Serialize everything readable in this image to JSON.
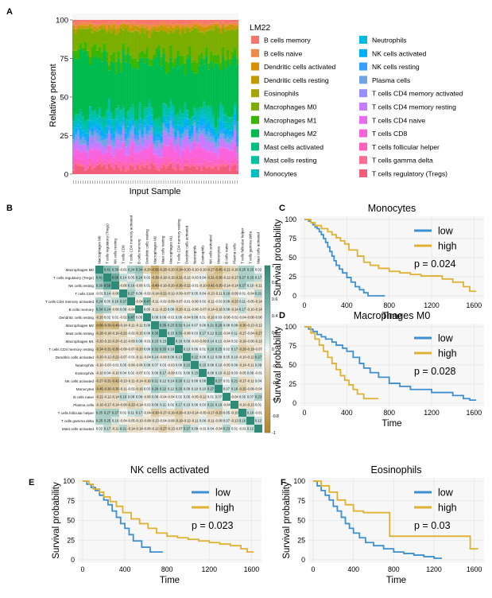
{
  "colors": {
    "green": "#2e8b78",
    "gold": "#b5892a",
    "km_low": "#3d8fd2",
    "km_high": "#e0b030",
    "grid": "#e6e6e6",
    "panel_bg": "#f7f7f7"
  },
  "panels": {
    "a": {
      "label": "A"
    },
    "b": {
      "label": "B"
    },
    "c": {
      "label": "C"
    },
    "d": {
      "label": "D"
    },
    "e": {
      "label": "E"
    },
    "f": {
      "label": "F"
    }
  },
  "chart_data": [
    {
      "id": "A",
      "type": "bar",
      "stacked": true,
      "xlabel": "Input Sample",
      "ylabel": "Relative percent",
      "ylim": [
        0,
        100
      ],
      "yticks": [
        0,
        25,
        50,
        75,
        100
      ],
      "legend": {
        "title": "LM22",
        "placement": "right",
        "entries": [
          {
            "name": "B cells memory",
            "color": "#f7766d"
          },
          {
            "name": "B cells naive",
            "color": "#f08a4b"
          },
          {
            "name": "Dendritic cells activated",
            "color": "#d89000"
          },
          {
            "name": "Dendritic cells resting",
            "color": "#c49a00"
          },
          {
            "name": "Eosinophils",
            "color": "#a3a500"
          },
          {
            "name": "Macrophages M0",
            "color": "#7cae00"
          },
          {
            "name": "Macrophages M1",
            "color": "#39b600"
          },
          {
            "name": "Macrophages M2",
            "color": "#00bb4e"
          },
          {
            "name": "Mast cells activated",
            "color": "#00bf7d"
          },
          {
            "name": "Mast cells resting",
            "color": "#00c1a3"
          },
          {
            "name": "Monocytes",
            "color": "#00bfc4"
          },
          {
            "name": "Neutrophils",
            "color": "#00bae0"
          },
          {
            "name": "NK cells activated",
            "color": "#00b0f6"
          },
          {
            "name": "NK cells resting",
            "color": "#35a2ff"
          },
          {
            "name": "Plasma cells",
            "color": "#6ea6e4"
          },
          {
            "name": "T cells CD4 memory activated",
            "color": "#9590ff"
          },
          {
            "name": "T cells CD4 memory resting",
            "color": "#c77cff"
          },
          {
            "name": "T cells CD4 naive",
            "color": "#e76bf3"
          },
          {
            "name": "T cells CD8",
            "color": "#fa62db"
          },
          {
            "name": "T cells follicular helper",
            "color": "#ff62bc"
          },
          {
            "name": "T cells gamma delta",
            "color": "#ff6c91"
          },
          {
            "name": "T cells regulatory (Tregs)",
            "color": "#f25d7b"
          }
        ]
      },
      "n_samples": 70
    },
    {
      "id": "B",
      "type": "heatmap",
      "color_scale": {
        "min": -1,
        "max": 1,
        "ticks": [
          1,
          0.8,
          0.6,
          0.4,
          0.2,
          0,
          -0.2,
          -0.4,
          -0.6,
          -0.8,
          -1
        ]
      },
      "labels": [
        "Macrophages M0",
        "T cells regulatory (Tregs)",
        "NK cells resting",
        "T cells CD8",
        "T cells CD4 memory activated",
        "B cells memory",
        "Dendritic cells resting",
        "Macrophages M2",
        "Mast cells resting",
        "Macrophages M1",
        "T cells CD4 memory resting",
        "Dendritic cells activated",
        "Neutrophils",
        "Eosinophils",
        "NK cells activated",
        "Monocytes",
        "B cells naive",
        "Plasma cells",
        "T cells follicular helper",
        "T cells gamma delta",
        "Mast cells activated"
      ],
      "matrix": [
        [
          1,
          0.41,
          0.3,
          -0.01,
          0.24,
          0.34,
          -0.2,
          -0.56,
          -0.28,
          -0.2,
          -0.34,
          -0.2,
          -0.1,
          -0.1,
          -0.27,
          -0.45,
          -0.21,
          -0.16,
          0.25,
          0.25,
          0.02
        ],
        [
          0.41,
          1,
          0.59,
          0.14,
          0.05,
          0.24,
          0.02,
          -0.39,
          -0.18,
          -0.15,
          -0.31,
          -0.12,
          -0.03,
          0.04,
          -0.31,
          -0.36,
          -0.12,
          -0.17,
          0.27,
          0.25,
          0.17
        ],
        [
          0.3,
          0.59,
          1,
          -0.06,
          0.16,
          -0.06,
          0.01,
          -0.49,
          -0.16,
          -0.2,
          -0.36,
          -0.22,
          -0.01,
          -0.1,
          -0.42,
          -0.35,
          -0.14,
          -0.14,
          0.27,
          0.1,
          -0.11
        ],
        [
          -0.01,
          0.14,
          -0.06,
          1,
          0.27,
          0.08,
          -0.02,
          -0.14,
          -0.22,
          -0.12,
          -0.09,
          -0.07,
          0.05,
          0.04,
          -0.13,
          -0.11,
          0.18,
          -0.09,
          0.01,
          -0.04,
          0.21
        ],
        [
          0.24,
          0.05,
          0.16,
          0.27,
          1,
          -0.04,
          0.47,
          -0.11,
          -0.02,
          -0.09,
          -0.07,
          -0.01,
          -0.06,
          0.02,
          -0.11,
          -0.02,
          0.08,
          -0.23,
          0.11,
          -0.05,
          -0.14
        ],
        [
          0.34,
          0.24,
          -0.06,
          0.08,
          -0.04,
          1,
          0.05,
          -0.11,
          -0.15,
          0.08,
          -0.2,
          -0.11,
          -0.06,
          -0.07,
          -0.14,
          -0.16,
          0.08,
          -0.14,
          0.17,
          -0.1,
          -0.14
        ],
        [
          -0.2,
          0.02,
          0.01,
          -0.02,
          0.47,
          0.05,
          1,
          0.08,
          0.06,
          -0.01,
          0.06,
          -0.04,
          0.08,
          0.01,
          -0.16,
          0.03,
          -0.06,
          -0.02,
          -0.04,
          -0.08,
          -0.06
        ],
        [
          -0.56,
          -0.39,
          -0.49,
          -0.14,
          -0.11,
          -0.11,
          0.08,
          1,
          0.35,
          0.23,
          0.32,
          0.14,
          0.07,
          0.06,
          0.21,
          0.29,
          0.08,
          0.09,
          -0.3,
          -0.13,
          -0.12
        ],
        [
          -0.28,
          -0.18,
          -0.16,
          -0.22,
          -0.02,
          -0.15,
          0.06,
          0.35,
          1,
          0.15,
          0.33,
          -0.08,
          0.03,
          0.17,
          0.12,
          0.22,
          -0.04,
          0.11,
          -0.17,
          -0.04,
          -0.27
        ],
        [
          -0.2,
          -0.15,
          -0.2,
          -0.12,
          -0.09,
          0.08,
          -0.01,
          0.23,
          0.15,
          1,
          0.18,
          0.09,
          -0.03,
          -0.09,
          0.14,
          0.12,
          -0.04,
          0.02,
          -0.16,
          -0.06,
          -0.13
        ],
        [
          -0.34,
          -0.31,
          -0.36,
          -0.09,
          -0.07,
          -0.2,
          0.06,
          0.32,
          0.33,
          0.18,
          1,
          0.13,
          0.06,
          0.01,
          0.26,
          0.25,
          0.02,
          0.17,
          -0.28,
          -0.19,
          -0.07
        ],
        [
          -0.2,
          -0.12,
          -0.22,
          -0.07,
          -0.01,
          -0.11,
          -0.04,
          0.14,
          -0.08,
          0.09,
          0.13,
          1,
          0.22,
          0.06,
          0.12,
          0.09,
          0.05,
          0.1,
          -0.1,
          -0.12,
          0.27
        ],
        [
          -0.1,
          -0.03,
          -0.01,
          0.05,
          -0.06,
          -0.06,
          0.08,
          0.07,
          0.03,
          -0.03,
          0.06,
          0.22,
          1,
          0.15,
          0.08,
          0.1,
          -0.05,
          0.06,
          -0.14,
          -0.11,
          0.09
        ],
        [
          -0.1,
          0.04,
          -0.1,
          0.04,
          0.02,
          -0.07,
          0.01,
          0.06,
          0.17,
          -0.09,
          0.01,
          0.06,
          0.15,
          1,
          0.08,
          0.1,
          -0.12,
          0.03,
          -0.05,
          0.06,
          -0.01
        ],
        [
          -0.27,
          -0.31,
          -0.42,
          -0.13,
          -0.11,
          -0.14,
          -0.16,
          0.21,
          0.12,
          0.14,
          0.26,
          0.12,
          0.08,
          0.08,
          1,
          0.27,
          0.01,
          0.21,
          -0.17,
          -0.11,
          0.04
        ],
        [
          -0.45,
          -0.36,
          -0.35,
          -0.11,
          -0.02,
          -0.16,
          0.03,
          0.29,
          0.22,
          0.12,
          0.25,
          0.09,
          0.1,
          0.1,
          0.27,
          1,
          0.07,
          0.18,
          -0.25,
          -0.08,
          -0.04
        ],
        [
          -0.21,
          -0.12,
          -0.14,
          0.18,
          0.08,
          0.08,
          -0.06,
          0.08,
          -0.04,
          -0.04,
          0.02,
          0.05,
          -0.05,
          -0.12,
          0.01,
          0.07,
          1,
          -0.04,
          0.05,
          0.07,
          0.23
        ],
        [
          -0.16,
          -0.17,
          -0.14,
          -0.09,
          -0.23,
          -0.14,
          -0.02,
          0.09,
          0.11,
          0.02,
          0.17,
          0.1,
          0.06,
          0.03,
          0.21,
          0.18,
          -0.04,
          1,
          -0.1,
          -0.13,
          0.01
        ],
        [
          0.25,
          0.27,
          0.27,
          0.01,
          0.11,
          0.17,
          -0.04,
          -0.3,
          -0.17,
          -0.16,
          -0.28,
          -0.1,
          -0.14,
          -0.05,
          -0.17,
          -0.25,
          0.05,
          -0.1,
          1,
          0.16,
          -0.01
        ],
        [
          0.25,
          0.25,
          0.1,
          -0.04,
          -0.05,
          -0.1,
          -0.08,
          -0.13,
          -0.04,
          -0.06,
          -0.19,
          -0.12,
          -0.11,
          0.06,
          -0.11,
          -0.08,
          0.07,
          -0.13,
          0.16,
          1,
          0.12
        ],
        [
          0.02,
          0.17,
          -0.11,
          0.21,
          -0.14,
          -0.14,
          -0.06,
          -0.12,
          -0.27,
          -0.13,
          -0.07,
          0.27,
          0.09,
          -0.01,
          0.04,
          -0.04,
          0.23,
          0.01,
          -0.01,
          0.12,
          1
        ]
      ]
    },
    {
      "id": "C",
      "type": "line",
      "title": "Monocytes",
      "xlabel": "Time",
      "ylabel": "Survival probability",
      "xlim": [
        0,
        1650
      ],
      "ylim": [
        0,
        100
      ],
      "xticks": [
        0,
        400,
        800,
        1200,
        1600
      ],
      "yticks": [
        0,
        25,
        50,
        75,
        100
      ],
      "pvalue": "p = 0.024",
      "series": [
        {
          "name": "low",
          "color": "#3d8fd2",
          "x": [
            0,
            40,
            60,
            80,
            100,
            120,
            140,
            160,
            180,
            200,
            220,
            240,
            260,
            280,
            300,
            330,
            360,
            400,
            440,
            480,
            520,
            560,
            600,
            760
          ],
          "y": [
            100,
            98,
            96,
            93,
            90,
            88,
            84,
            80,
            75,
            70,
            64,
            58,
            52,
            46,
            40,
            35,
            30,
            24,
            18,
            12,
            8,
            4,
            0,
            0
          ]
        },
        {
          "name": "high",
          "color": "#e0b030",
          "x": [
            0,
            60,
            100,
            160,
            220,
            260,
            300,
            340,
            380,
            420,
            500,
            560,
            620,
            700,
            800,
            900,
            1000,
            1100,
            1300,
            1400,
            1500,
            1560,
            1620
          ],
          "y": [
            100,
            96,
            92,
            88,
            84,
            80,
            76,
            72,
            68,
            60,
            52,
            44,
            40,
            36,
            32,
            30,
            28,
            26,
            22,
            18,
            12,
            6,
            6
          ]
        }
      ]
    },
    {
      "id": "D",
      "type": "line",
      "title": "Macrophages M0",
      "xlabel": "Time",
      "ylabel": "Survival probability",
      "xlim": [
        0,
        1650
      ],
      "ylim": [
        0,
        100
      ],
      "xticks": [
        0,
        400,
        800,
        1200,
        1600
      ],
      "yticks": [
        0,
        25,
        50,
        75,
        100
      ],
      "pvalue": "p = 0.028",
      "series": [
        {
          "name": "low",
          "color": "#3d8fd2",
          "x": [
            0,
            40,
            80,
            120,
            160,
            200,
            260,
            300,
            360,
            400,
            460,
            520,
            560,
            620,
            700,
            800,
            900,
            1000,
            1200,
            1400,
            1500,
            1560,
            1620
          ],
          "y": [
            100,
            97,
            94,
            90,
            87,
            84,
            80,
            76,
            72,
            68,
            60,
            52,
            46,
            40,
            34,
            26,
            22,
            18,
            14,
            10,
            6,
            4,
            4
          ]
        },
        {
          "name": "high",
          "color": "#e0b030",
          "x": [
            0,
            60,
            100,
            140,
            180,
            220,
            260,
            300,
            340,
            380,
            420,
            460,
            500,
            560,
            640,
            700
          ],
          "y": [
            100,
            92,
            84,
            76,
            68,
            60,
            52,
            44,
            36,
            30,
            24,
            18,
            12,
            6,
            6,
            6
          ]
        }
      ]
    },
    {
      "id": "E",
      "type": "line",
      "title": "NK cells activated",
      "xlabel": "Time",
      "ylabel": "Survival probability",
      "xlim": [
        0,
        1650
      ],
      "ylim": [
        0,
        100
      ],
      "xticks": [
        0,
        400,
        800,
        1200,
        1600
      ],
      "yticks": [
        0,
        25,
        50,
        75,
        100
      ],
      "pvalue": "p = 0.023",
      "series": [
        {
          "name": "low",
          "color": "#3d8fd2",
          "x": [
            0,
            40,
            80,
            120,
            160,
            200,
            240,
            280,
            320,
            360,
            400,
            440,
            480,
            560,
            640,
            760
          ],
          "y": [
            100,
            96,
            92,
            88,
            82,
            76,
            70,
            62,
            54,
            46,
            40,
            32,
            24,
            16,
            10,
            10
          ]
        },
        {
          "name": "high",
          "color": "#e0b030",
          "x": [
            0,
            60,
            100,
            160,
            200,
            260,
            320,
            380,
            460,
            540,
            620,
            700,
            800,
            900,
            1000,
            1100,
            1200,
            1300,
            1400,
            1500,
            1560,
            1620
          ],
          "y": [
            100,
            96,
            90,
            86,
            80,
            74,
            68,
            60,
            52,
            46,
            40,
            34,
            30,
            28,
            26,
            24,
            22,
            20,
            18,
            14,
            10,
            10
          ]
        }
      ]
    },
    {
      "id": "F",
      "type": "line",
      "title": "Eosinophils",
      "xlabel": "Time",
      "ylabel": "Survival probability",
      "xlim": [
        0,
        1650
      ],
      "ylim": [
        0,
        100
      ],
      "xticks": [
        0,
        400,
        800,
        1200,
        1600
      ],
      "yticks": [
        0,
        25,
        50,
        75,
        100
      ],
      "pvalue": "p = 0.03",
      "series": [
        {
          "name": "low",
          "color": "#3d8fd2",
          "x": [
            0,
            40,
            80,
            120,
            160,
            200,
            240,
            280,
            320,
            360,
            400,
            460,
            520,
            600,
            700,
            800,
            900,
            1000,
            1100,
            1200,
            1280
          ],
          "y": [
            100,
            94,
            88,
            82,
            76,
            68,
            62,
            54,
            46,
            40,
            34,
            28,
            22,
            18,
            14,
            10,
            8,
            6,
            4,
            2,
            2
          ]
        },
        {
          "name": "high",
          "color": "#e0b030",
          "x": [
            0,
            80,
            160,
            240,
            320,
            400,
            500,
            600,
            700,
            760,
            900,
            1200,
            1400,
            1560,
            1640
          ],
          "y": [
            100,
            94,
            86,
            76,
            70,
            62,
            60,
            60,
            60,
            30,
            30,
            30,
            30,
            14,
            14
          ]
        }
      ]
    }
  ]
}
